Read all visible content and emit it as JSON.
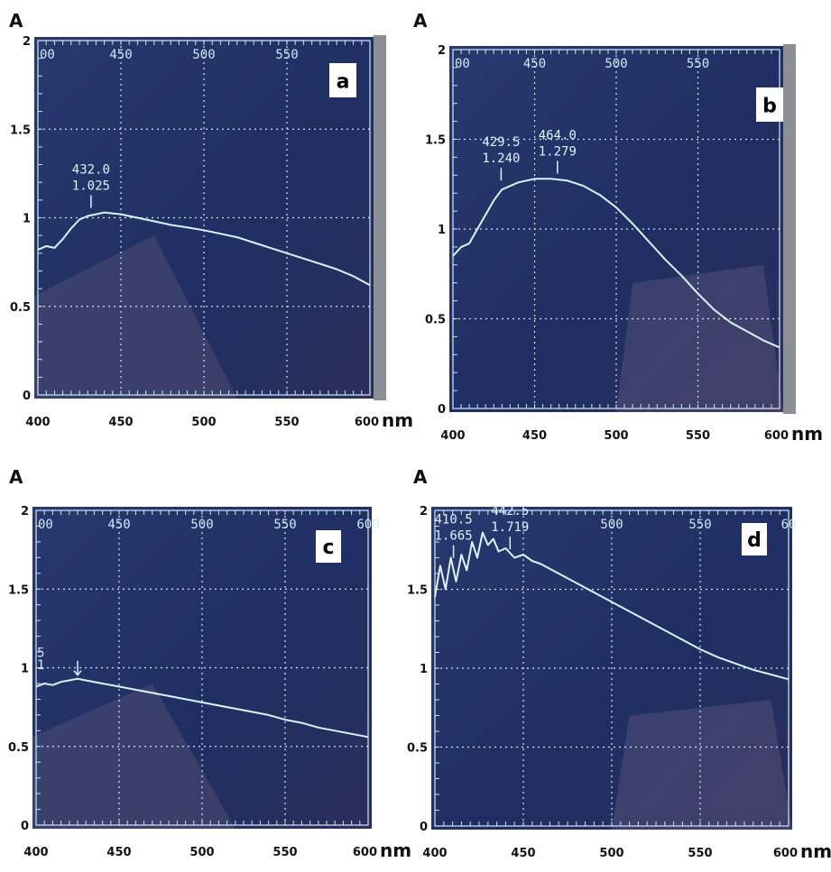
{
  "colors": {
    "screen": "#1f2f63",
    "screen_edge": "#3d4a7a",
    "trace": "#d8f4ff",
    "grid": "#cfe8f5",
    "text": "#111111",
    "bezel": "#8d8f96"
  },
  "chart_data": [
    {
      "type": "line",
      "panel_letter": "a",
      "ylabel": "A",
      "xlabel": "nm",
      "xlim": [
        400,
        600
      ],
      "ylim": [
        0,
        2
      ],
      "x_ticks": [
        "400",
        "450",
        "500",
        "550",
        "600"
      ],
      "y_ticks": [
        "0",
        "0.5",
        "1",
        "1.5",
        "2"
      ],
      "screen_x_ticks": [
        "400",
        "450",
        "500",
        "550"
      ],
      "annotations": [
        {
          "x": 432.0,
          "y": 1.025,
          "wave": "432.0",
          "abs": "1.025"
        }
      ],
      "series": [
        {
          "x": [
            400,
            405,
            410,
            415,
            420,
            425,
            430,
            435,
            440,
            450,
            460,
            470,
            480,
            490,
            500,
            510,
            520,
            530,
            540,
            550,
            560,
            570,
            580,
            590,
            600
          ],
          "y": [
            0.82,
            0.84,
            0.83,
            0.88,
            0.94,
            0.99,
            1.01,
            1.02,
            1.03,
            1.02,
            1.0,
            0.98,
            0.96,
            0.945,
            0.93,
            0.91,
            0.89,
            0.86,
            0.83,
            0.8,
            0.77,
            0.74,
            0.71,
            0.67,
            0.62
          ]
        }
      ]
    },
    {
      "type": "line",
      "panel_letter": "b",
      "ylabel": "A",
      "xlabel": "nm",
      "xlim": [
        400,
        600
      ],
      "ylim": [
        0,
        2
      ],
      "x_ticks": [
        "400",
        "450",
        "500",
        "550",
        "600"
      ],
      "y_ticks": [
        "0",
        "0.5",
        "1",
        "1.5",
        "2"
      ],
      "screen_x_ticks": [
        "400",
        "450",
        "500",
        "550"
      ],
      "annotations": [
        {
          "x": 429.5,
          "y": 1.24,
          "wave": "429.5",
          "abs": "1.240"
        },
        {
          "x": 464.0,
          "y": 1.279,
          "wave": "464.0",
          "abs": "1.279"
        }
      ],
      "series": [
        {
          "x": [
            400,
            405,
            410,
            415,
            420,
            425,
            430,
            440,
            450,
            460,
            470,
            480,
            490,
            500,
            510,
            520,
            530,
            540,
            550,
            560,
            570,
            580,
            590,
            600
          ],
          "y": [
            0.85,
            0.9,
            0.92,
            1.0,
            1.08,
            1.16,
            1.22,
            1.26,
            1.28,
            1.28,
            1.27,
            1.24,
            1.19,
            1.12,
            1.03,
            0.93,
            0.83,
            0.74,
            0.64,
            0.55,
            0.48,
            0.43,
            0.38,
            0.34
          ]
        }
      ]
    },
    {
      "type": "line",
      "panel_letter": "c",
      "ylabel": "A",
      "xlabel": "nm",
      "xlim": [
        400,
        600
      ],
      "ylim": [
        0,
        2
      ],
      "x_ticks": [
        "400",
        "450",
        "500",
        "550",
        "600"
      ],
      "y_ticks": [
        "0",
        "0.5",
        "1",
        "1.5",
        "2"
      ],
      "screen_x_ticks": [
        "400",
        "450",
        "500",
        "550",
        "600"
      ],
      "screen_y_fragments": [
        "5",
        "1"
      ],
      "annotations": [
        {
          "x": 425,
          "y": 0.93,
          "wave": "",
          "abs": ""
        }
      ],
      "series": [
        {
          "x": [
            400,
            405,
            410,
            415,
            420,
            425,
            430,
            440,
            450,
            460,
            470,
            480,
            490,
            500,
            510,
            520,
            530,
            540,
            550,
            560,
            570,
            580,
            590,
            600
          ],
          "y": [
            0.88,
            0.9,
            0.89,
            0.91,
            0.92,
            0.93,
            0.92,
            0.9,
            0.88,
            0.86,
            0.84,
            0.82,
            0.8,
            0.78,
            0.76,
            0.74,
            0.72,
            0.7,
            0.67,
            0.65,
            0.62,
            0.6,
            0.58,
            0.56
          ]
        }
      ]
    },
    {
      "type": "line",
      "panel_letter": "d",
      "ylabel": "A",
      "xlabel": "nm",
      "xlim": [
        400,
        600
      ],
      "ylim": [
        0,
        2
      ],
      "x_ticks": [
        "400",
        "450",
        "500",
        "550",
        "600"
      ],
      "y_ticks": [
        "0",
        "0.5",
        "1",
        "1.5",
        "2"
      ],
      "screen_x_ticks": [
        "500",
        "550",
        "60"
      ],
      "annotations": [
        {
          "x": 410.5,
          "y": 1.665,
          "wave": "410.5",
          "abs": "1.665"
        },
        {
          "x": 442.5,
          "y": 1.719,
          "wave": "442.5",
          "abs": "1.719"
        }
      ],
      "series": [
        {
          "x": [
            400,
            403,
            406,
            409,
            412,
            415,
            418,
            421,
            424,
            427,
            430,
            433,
            436,
            440,
            445,
            450,
            455,
            460,
            470,
            480,
            490,
            500,
            510,
            520,
            530,
            540,
            550,
            560,
            570,
            580,
            590,
            600
          ],
          "y": [
            1.45,
            1.65,
            1.5,
            1.7,
            1.55,
            1.72,
            1.62,
            1.8,
            1.7,
            1.86,
            1.78,
            1.82,
            1.74,
            1.76,
            1.7,
            1.72,
            1.68,
            1.66,
            1.6,
            1.54,
            1.48,
            1.42,
            1.36,
            1.3,
            1.24,
            1.18,
            1.12,
            1.07,
            1.03,
            0.99,
            0.96,
            0.93
          ]
        }
      ]
    }
  ]
}
